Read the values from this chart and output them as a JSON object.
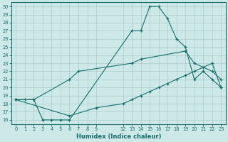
{
  "xlabel": "Humidex (Indice chaleur)",
  "background_color": "#cce9e8",
  "grid_color": "#aacccc",
  "line_color": "#1a6b6b",
  "xlim": [
    -0.5,
    23.5
  ],
  "ylim": [
    15.5,
    30.5
  ],
  "xticks": [
    0,
    1,
    2,
    3,
    4,
    5,
    6,
    7,
    8,
    9,
    12,
    13,
    14,
    15,
    16,
    17,
    18,
    19,
    20,
    21,
    22,
    23
  ],
  "yticks": [
    16,
    17,
    18,
    19,
    20,
    21,
    22,
    23,
    24,
    25,
    26,
    27,
    28,
    29,
    30
  ],
  "s1_x": [
    0,
    1,
    2,
    3,
    4,
    5,
    6,
    13,
    14,
    15,
    16,
    17,
    18,
    19,
    20,
    21,
    22,
    23
  ],
  "s1_y": [
    18.5,
    18.5,
    18.5,
    16.0,
    16.0,
    16.0,
    16.0,
    27.0,
    27.0,
    30.0,
    30.0,
    28.5,
    26.0,
    25.0,
    21.0,
    22.0,
    21.0,
    20.0
  ],
  "s2_x": [
    0,
    2,
    6,
    7,
    13,
    14,
    19,
    20,
    22,
    23
  ],
  "s2_y": [
    18.5,
    18.5,
    21.0,
    22.0,
    23.0,
    23.5,
    24.5,
    23.0,
    22.0,
    21.0
  ],
  "s3_x": [
    0,
    6,
    9,
    12,
    13,
    14,
    15,
    16,
    17,
    18,
    19,
    20,
    21,
    22,
    23
  ],
  "s3_y": [
    18.5,
    16.5,
    17.5,
    18.0,
    18.5,
    19.0,
    19.5,
    20.0,
    20.5,
    21.0,
    21.5,
    22.0,
    22.5,
    23.0,
    20.0
  ]
}
